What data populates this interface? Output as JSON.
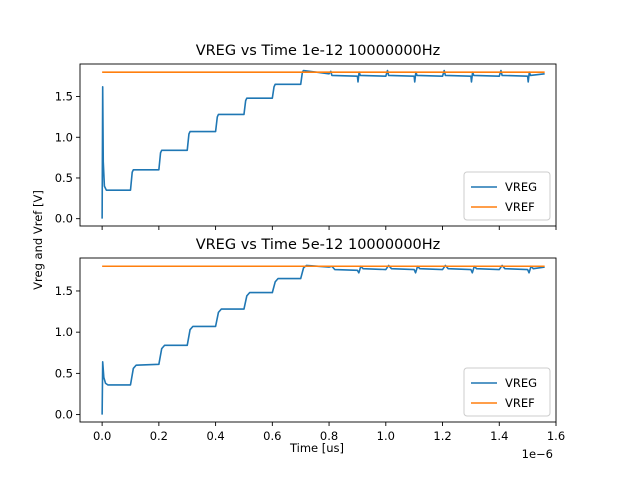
{
  "figure": {
    "ylabel": "Vreg and Vref [V]",
    "xlabel": "Time [us]",
    "offset_text": "1e−6"
  },
  "chart_data": [
    {
      "type": "line",
      "title": "VREG vs Time 1e-12 10000000Hz",
      "xlim": [
        -7.8e-08,
        1.6e-06
      ],
      "ylim": [
        -0.09,
        1.9
      ],
      "xticks": [
        0.0,
        2e-07,
        4e-07,
        6e-07,
        8e-07,
        1e-06,
        1.2e-06,
        1.4e-06,
        1.6e-06
      ],
      "xtick_labels": [
        "0.0",
        "0.2",
        "0.4",
        "0.6",
        "0.8",
        "1.0",
        "1.2",
        "1.4",
        "1.6"
      ],
      "show_xtick_labels": false,
      "yticks": [
        0.0,
        0.5,
        1.0,
        1.5
      ],
      "ytick_labels": [
        "0.0",
        "0.5",
        "1.0",
        "1.5"
      ],
      "grid": false,
      "legend": "lower-right",
      "series": [
        {
          "name": "VREG",
          "color": "#1f77b4",
          "x": [
            0,
            2e-09,
            4e-09,
            8e-09,
            1.5e-08,
            1e-07,
            1.06e-07,
            1.1e-07,
            2e-07,
            2.06e-07,
            2.1e-07,
            3e-07,
            3.06e-07,
            3.1e-07,
            4e-07,
            4.06e-07,
            4.1e-07,
            5e-07,
            5.06e-07,
            5.1e-07,
            6e-07,
            6.06e-07,
            6.1e-07,
            7e-07,
            7.06e-07,
            7.1e-07,
            8e-07,
            8.06e-07,
            8.1e-07,
            9e-07,
            9.02e-07,
            9.06e-07,
            9.1e-07,
            1e-06,
            1.006e-06,
            1.01e-06,
            1.1e-06,
            1.102e-06,
            1.106e-06,
            1.11e-06,
            1.2e-06,
            1.206e-06,
            1.21e-06,
            1.3e-06,
            1.302e-06,
            1.306e-06,
            1.31e-06,
            1.4e-06,
            1.406e-06,
            1.41e-06,
            1.5e-06,
            1.502e-06,
            1.506e-06,
            1.51e-06,
            1.56e-06
          ],
          "y": [
            0,
            1.62,
            0.7,
            0.4,
            0.35,
            0.35,
            0.57,
            0.6,
            0.6,
            0.81,
            0.84,
            0.84,
            1.04,
            1.07,
            1.07,
            1.25,
            1.28,
            1.28,
            1.45,
            1.48,
            1.48,
            1.62,
            1.65,
            1.65,
            1.8,
            1.82,
            1.78,
            1.81,
            1.76,
            1.75,
            1.68,
            1.8,
            1.76,
            1.75,
            1.82,
            1.76,
            1.75,
            1.68,
            1.8,
            1.76,
            1.75,
            1.82,
            1.76,
            1.75,
            1.68,
            1.8,
            1.76,
            1.75,
            1.82,
            1.76,
            1.75,
            1.68,
            1.8,
            1.76,
            1.78
          ]
        },
        {
          "name": "VREF",
          "color": "#ff7f0e",
          "x": [
            0,
            1.56e-06
          ],
          "y": [
            1.8,
            1.8
          ]
        }
      ]
    },
    {
      "type": "line",
      "title": "VREG vs Time 5e-12 10000000Hz",
      "xlim": [
        -7.8e-08,
        1.6e-06
      ],
      "ylim": [
        -0.09,
        1.9
      ],
      "xticks": [
        0.0,
        2e-07,
        4e-07,
        6e-07,
        8e-07,
        1e-06,
        1.2e-06,
        1.4e-06,
        1.6e-06
      ],
      "xtick_labels": [
        "0.0",
        "0.2",
        "0.4",
        "0.6",
        "0.8",
        "1.0",
        "1.2",
        "1.4",
        "1.6"
      ],
      "show_xtick_labels": true,
      "yticks": [
        0.0,
        0.5,
        1.0,
        1.5
      ],
      "ytick_labels": [
        "0.0",
        "0.5",
        "1.0",
        "1.5"
      ],
      "grid": false,
      "legend": "lower-right",
      "series": [
        {
          "name": "VREG",
          "color": "#1f77b4",
          "x": [
            0,
            2e-09,
            6e-09,
            1.2e-08,
            2e-08,
            1e-07,
            1.1e-07,
            1.2e-07,
            2e-07,
            2.1e-07,
            2.2e-07,
            3e-07,
            3.1e-07,
            3.2e-07,
            4e-07,
            4.1e-07,
            4.2e-07,
            5e-07,
            5.1e-07,
            5.2e-07,
            6e-07,
            6.1e-07,
            6.2e-07,
            7e-07,
            7.1e-07,
            7.2e-07,
            8e-07,
            8.1e-07,
            8.2e-07,
            9e-07,
            9.05e-07,
            9.12e-07,
            9.2e-07,
            1e-06,
            1.01e-06,
            1.02e-06,
            1.1e-06,
            1.105e-06,
            1.112e-06,
            1.12e-06,
            1.2e-06,
            1.21e-06,
            1.22e-06,
            1.3e-06,
            1.305e-06,
            1.312e-06,
            1.32e-06,
            1.4e-06,
            1.41e-06,
            1.42e-06,
            1.5e-06,
            1.505e-06,
            1.512e-06,
            1.52e-06,
            1.56e-06
          ],
          "y": [
            0,
            0.64,
            0.45,
            0.38,
            0.36,
            0.36,
            0.56,
            0.6,
            0.61,
            0.8,
            0.84,
            0.84,
            1.03,
            1.07,
            1.07,
            1.24,
            1.28,
            1.28,
            1.44,
            1.48,
            1.48,
            1.61,
            1.65,
            1.65,
            1.78,
            1.81,
            1.79,
            1.8,
            1.76,
            1.75,
            1.72,
            1.8,
            1.77,
            1.76,
            1.81,
            1.77,
            1.76,
            1.72,
            1.8,
            1.77,
            1.76,
            1.81,
            1.77,
            1.76,
            1.72,
            1.8,
            1.77,
            1.76,
            1.81,
            1.77,
            1.76,
            1.72,
            1.8,
            1.77,
            1.79
          ]
        },
        {
          "name": "VREF",
          "color": "#ff7f0e",
          "x": [
            0,
            1.56e-06
          ],
          "y": [
            1.8,
            1.8
          ]
        }
      ]
    }
  ]
}
